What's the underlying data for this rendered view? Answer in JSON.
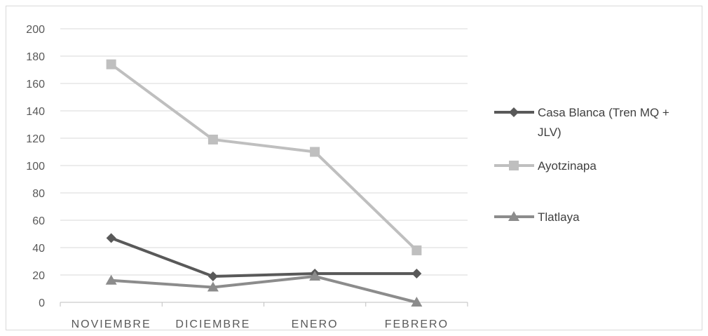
{
  "chart_data": {
    "type": "line",
    "categories": [
      "NOVIEMBRE",
      "DICIEMBRE",
      "ENERO",
      "FEBRERO"
    ],
    "ylim": [
      0,
      200
    ],
    "yticks": [
      0,
      20,
      40,
      60,
      80,
      100,
      120,
      140,
      160,
      180,
      200
    ],
    "grid": true,
    "legend_position": "right",
    "series": [
      {
        "name": "Casa Blanca (Tren MQ + JLV)",
        "name_lines": [
          "Casa Blanca (Tren MQ +",
          "JLV)"
        ],
        "values": [
          47,
          19,
          21,
          21
        ],
        "color": "#595959",
        "marker": "diamond"
      },
      {
        "name": "Ayotzinapa",
        "name_lines": [
          "Ayotzinapa"
        ],
        "values": [
          174,
          119,
          110,
          38
        ],
        "color": "#bfbfbf",
        "marker": "square"
      },
      {
        "name": "Tlatlaya",
        "name_lines": [
          "Tlatlaya"
        ],
        "values": [
          16,
          11,
          19,
          0
        ],
        "color": "#8c8c8c",
        "marker": "triangle"
      }
    ]
  }
}
